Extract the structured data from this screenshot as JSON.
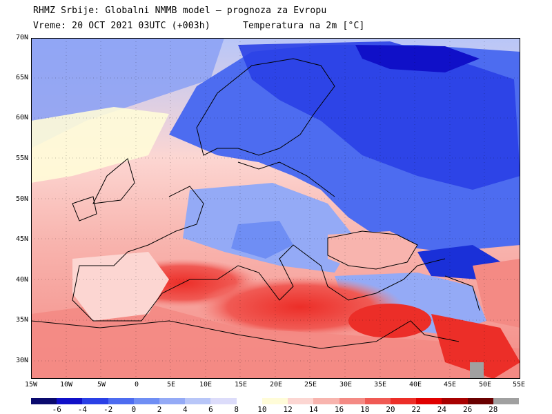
{
  "header": {
    "line1": "RHMZ Srbije: Globalni NMMB model — prognoza za Evropu",
    "line2_left": "Vreme: 20 OCT 2021 03UTC (+003h)",
    "line2_right": "Temperatura na 2m [°C]"
  },
  "map": {
    "lat_labels": [
      "70N",
      "65N",
      "60N",
      "55N",
      "50N",
      "45N",
      "40N",
      "35N",
      "30N"
    ],
    "lon_labels": [
      "15W",
      "10W",
      "5W",
      "0",
      "5E",
      "10E",
      "15E",
      "20E",
      "25E",
      "30E",
      "35E",
      "40E",
      "45E",
      "50E",
      "55E"
    ]
  },
  "legend": {
    "labels": [
      "-6",
      "-4",
      "-2",
      "0",
      "2",
      "4",
      "6",
      "8",
      "10",
      "12",
      "14",
      "16",
      "18",
      "20",
      "22",
      "24",
      "26",
      "28"
    ],
    "colors": [
      "#0a0a6e",
      "#1010c8",
      "#2a40e6",
      "#4d6cf0",
      "#6f8ef4",
      "#94aaf6",
      "#b8c6f8",
      "#dcdcfa",
      "#ffffff",
      "#fffcd8",
      "#fcd6d2",
      "#f8b4ae",
      "#f48a84",
      "#f05a54",
      "#ec2e28",
      "#e00000",
      "#a80000",
      "#6a0000",
      "#a0a0a0"
    ],
    "mid_gap": "white"
  }
}
